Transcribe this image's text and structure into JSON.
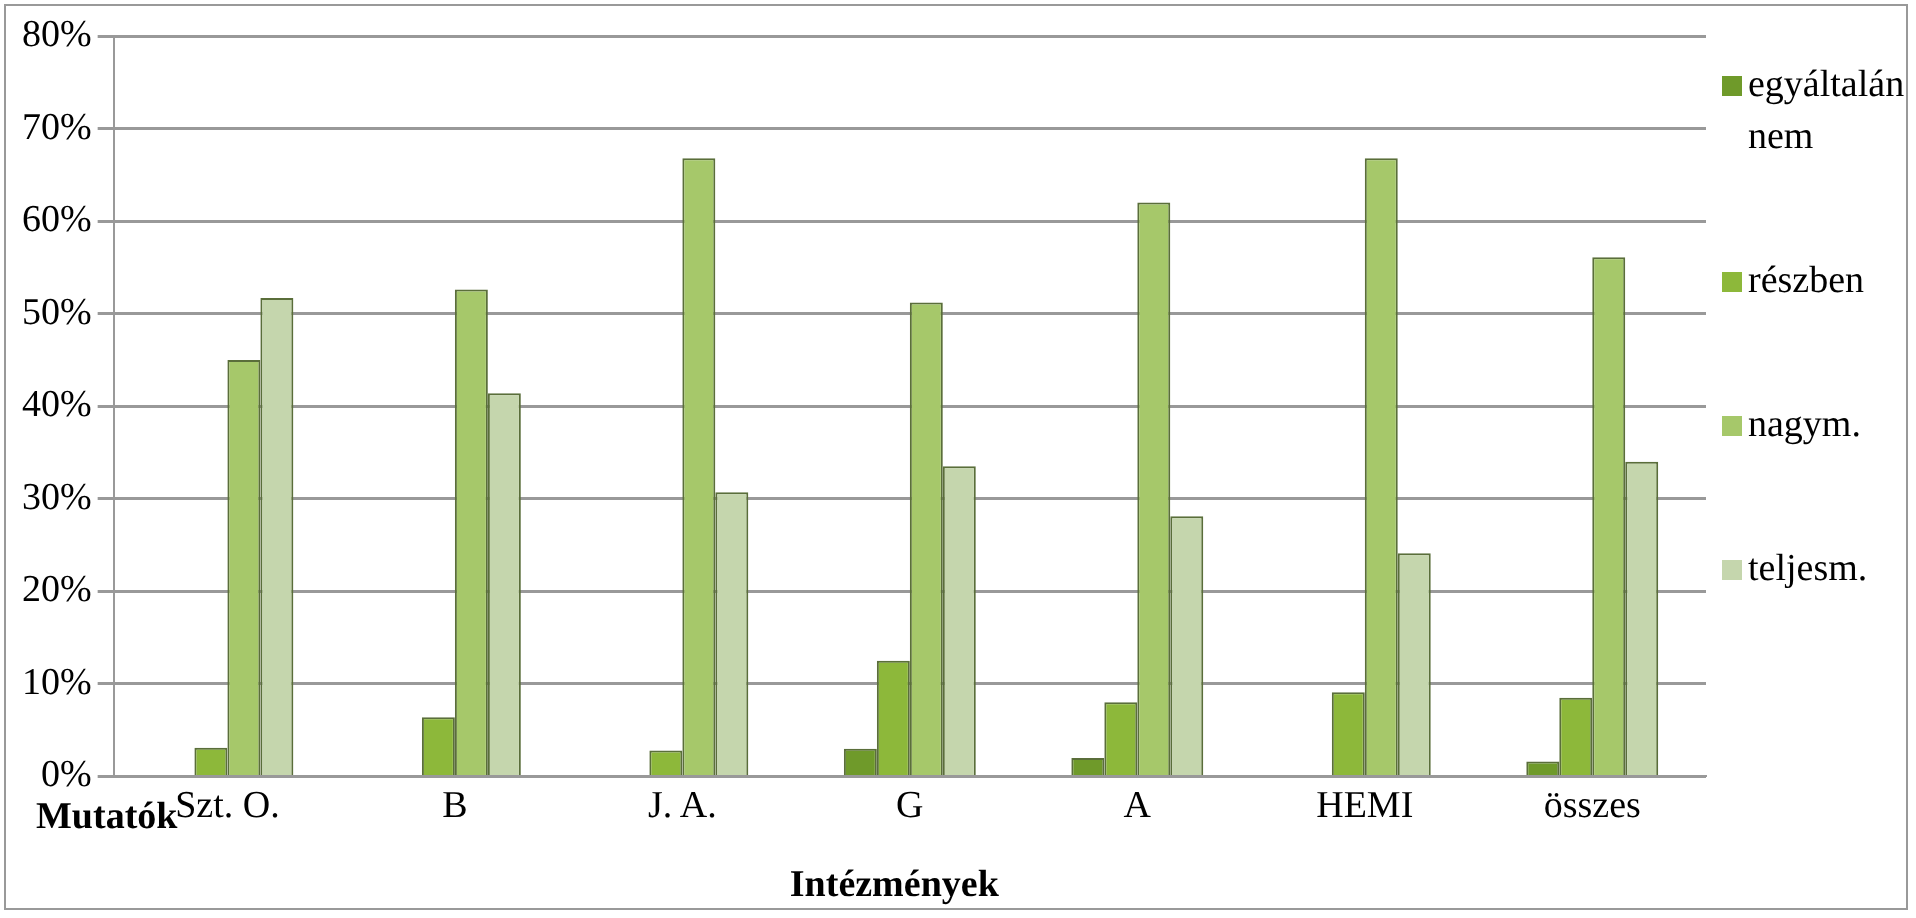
{
  "chart_data": {
    "type": "bar",
    "xlabel": "Intézmények",
    "ylabel": "Mutatók",
    "categories": [
      "Szt. O.",
      "B",
      "J. A.",
      "G",
      "A",
      "HEMI",
      "összes"
    ],
    "series": [
      {
        "name": "egyáltalán nem",
        "color": "#6f9a2a",
        "values": [
          null,
          null,
          null,
          3.0,
          2.0,
          null,
          1.6
        ]
      },
      {
        "name": "részben",
        "color": "#8db83a",
        "values": [
          3.1,
          6.4,
          2.8,
          12.5,
          8.0,
          9.1,
          8.5
        ]
      },
      {
        "name": "nagym.",
        "color": "#a6c86a",
        "values": [
          45.0,
          52.6,
          66.8,
          51.2,
          62.0,
          66.8,
          56.1
        ]
      },
      {
        "name": "teljesm.",
        "color": "#c5d6ad",
        "values": [
          51.7,
          41.4,
          30.7,
          33.5,
          28.1,
          24.1,
          34.0
        ]
      }
    ],
    "ylim": [
      0,
      80
    ],
    "yticks": [
      {
        "value": 0,
        "label": "0%"
      },
      {
        "value": 10,
        "label": "10%"
      },
      {
        "value": 20,
        "label": "20%"
      },
      {
        "value": 30,
        "label": "30%"
      },
      {
        "value": 40,
        "label": "40%"
      },
      {
        "value": 50,
        "label": "50%"
      },
      {
        "value": 60,
        "label": "60%"
      },
      {
        "value": 70,
        "label": "70%"
      },
      {
        "value": 80,
        "label": "80%"
      }
    ],
    "grid": "y",
    "legend": "right"
  }
}
